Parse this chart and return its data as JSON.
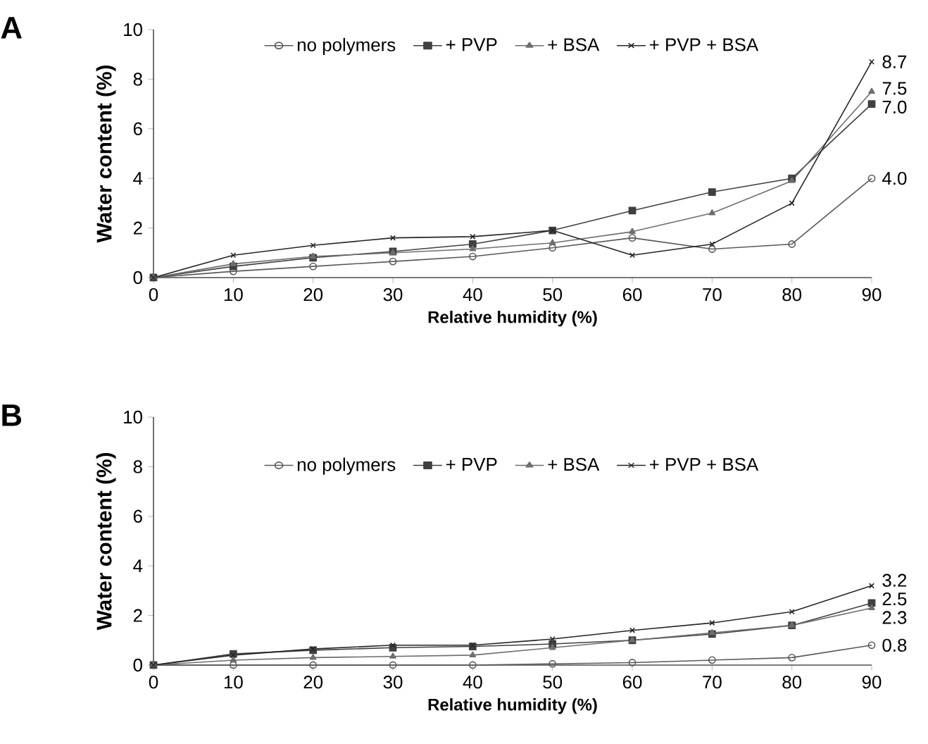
{
  "chart_data": [
    {
      "type": "line",
      "title": "A",
      "xlabel": "Relative humidity (%)",
      "ylabel": "Water content (%)",
      "x": [
        0,
        10,
        20,
        30,
        40,
        50,
        60,
        70,
        80,
        90
      ],
      "xlim": [
        0,
        90
      ],
      "xticks": [
        0,
        10,
        20,
        30,
        40,
        50,
        60,
        70,
        80,
        90
      ],
      "ylim": [
        0,
        10
      ],
      "yticks": [
        0,
        2,
        4,
        6,
        8,
        10
      ],
      "legend": "top",
      "grid": false,
      "line_style": "solid",
      "series": [
        {
          "name": "no polymers",
          "color": "#595959",
          "marker": "circle",
          "values": [
            0,
            0.25,
            0.45,
            0.65,
            0.85,
            1.2,
            1.6,
            1.15,
            1.35,
            4.0
          ],
          "value_labels": [
            null,
            null,
            null,
            null,
            null,
            null,
            null,
            null,
            null,
            "4.0"
          ]
        },
        {
          "name": "+ PVP",
          "color": "#404040",
          "marker": "square",
          "values": [
            0,
            0.45,
            0.8,
            1.05,
            1.35,
            1.9,
            2.7,
            3.45,
            4.0,
            7.0
          ],
          "value_labels": [
            null,
            null,
            null,
            null,
            null,
            null,
            null,
            null,
            null,
            "7.0"
          ]
        },
        {
          "name": "+ BSA",
          "color": "#6e6e6e",
          "marker": "triangle",
          "values": [
            0,
            0.55,
            0.85,
            1.0,
            1.15,
            1.4,
            1.85,
            2.6,
            3.9,
            7.5
          ],
          "value_labels": [
            null,
            null,
            null,
            null,
            null,
            null,
            null,
            null,
            null,
            "7.5"
          ]
        },
        {
          "name": "+ PVP + BSA",
          "color": "#262626",
          "marker": "cross",
          "values": [
            0,
            0.9,
            1.3,
            1.6,
            1.65,
            1.9,
            0.9,
            1.35,
            3.0,
            8.7
          ],
          "value_labels": [
            null,
            null,
            null,
            null,
            null,
            null,
            null,
            null,
            null,
            "8.7"
          ]
        }
      ]
    },
    {
      "type": "line",
      "title": "B",
      "xlabel": "Relative humidity (%)",
      "ylabel": "Water content (%)",
      "x": [
        0,
        10,
        20,
        30,
        40,
        50,
        60,
        70,
        80,
        90
      ],
      "xlim": [
        0,
        90
      ],
      "xticks": [
        0,
        10,
        20,
        30,
        40,
        50,
        60,
        70,
        80,
        90
      ],
      "ylim": [
        0,
        10
      ],
      "yticks": [
        0,
        2,
        4,
        6,
        8,
        10
      ],
      "legend": "top",
      "grid": false,
      "line_style": "solid",
      "series": [
        {
          "name": "no polymers",
          "color": "#595959",
          "marker": "circle",
          "values": [
            0,
            0,
            0,
            0,
            0,
            0.05,
            0.1,
            0.2,
            0.3,
            0.8
          ],
          "value_labels": [
            null,
            null,
            null,
            null,
            null,
            null,
            null,
            null,
            null,
            "0.8"
          ]
        },
        {
          "name": "+ PVP",
          "color": "#404040",
          "marker": "square",
          "values": [
            0,
            0.45,
            0.6,
            0.7,
            0.75,
            0.85,
            1.0,
            1.25,
            1.6,
            2.5
          ],
          "value_labels": [
            null,
            null,
            null,
            null,
            null,
            null,
            null,
            null,
            null,
            "2.5"
          ]
        },
        {
          "name": "+ BSA",
          "color": "#6e6e6e",
          "marker": "triangle",
          "values": [
            0,
            0.2,
            0.3,
            0.35,
            0.4,
            0.7,
            1.0,
            1.3,
            1.6,
            2.3
          ],
          "value_labels": [
            null,
            null,
            null,
            null,
            null,
            null,
            null,
            null,
            null,
            "2.3"
          ]
        },
        {
          "name": "+ PVP + BSA",
          "color": "#262626",
          "marker": "cross",
          "values": [
            0,
            0.4,
            0.65,
            0.8,
            0.8,
            1.05,
            1.4,
            1.7,
            2.15,
            3.2
          ],
          "value_labels": [
            null,
            null,
            null,
            null,
            null,
            null,
            null,
            null,
            null,
            "3.2"
          ]
        }
      ]
    }
  ]
}
